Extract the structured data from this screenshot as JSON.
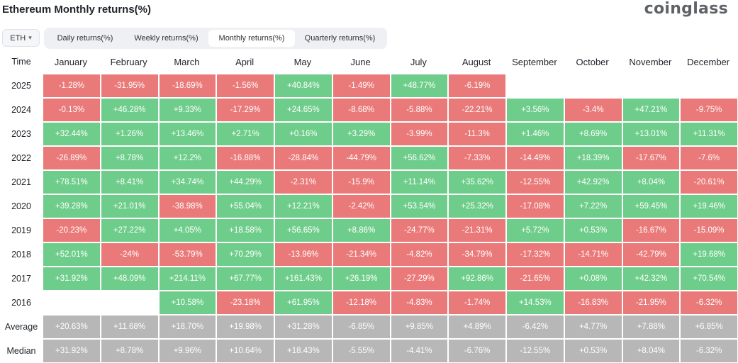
{
  "title": "Ethereum Monthly returns(%)",
  "brand": "coinglass",
  "asset_select": {
    "value": "ETH",
    "icon": "chevron-down-icon"
  },
  "tabs": [
    {
      "label": "Daily returns(%)",
      "active": false
    },
    {
      "label": "Weekly returns(%)",
      "active": false
    },
    {
      "label": "Monthly returns(%)",
      "active": true
    },
    {
      "label": "Quarterly returns(%)",
      "active": false
    }
  ],
  "colors": {
    "positive": "#6fcd8b",
    "negative": "#ea7a79",
    "stat": "#b7b7b7"
  },
  "table": {
    "corner": "Time",
    "months": [
      "January",
      "February",
      "March",
      "April",
      "May",
      "June",
      "July",
      "August",
      "September",
      "October",
      "November",
      "December"
    ],
    "rows": [
      {
        "label": "2025",
        "values": [
          "-1.28%",
          "-31.95%",
          "-18.69%",
          "-1.56%",
          "+40.84%",
          "-1.49%",
          "+48.77%",
          "-6.19%",
          "",
          "",
          "",
          ""
        ]
      },
      {
        "label": "2024",
        "values": [
          "-0.13%",
          "+46.28%",
          "+9.33%",
          "-17.29%",
          "+24.65%",
          "-8.68%",
          "-5.88%",
          "-22.21%",
          "+3.56%",
          "-3.4%",
          "+47.21%",
          "-9.75%"
        ]
      },
      {
        "label": "2023",
        "values": [
          "+32.44%",
          "+1.26%",
          "+13.46%",
          "+2.71%",
          "+0.16%",
          "+3.29%",
          "-3.99%",
          "-11.3%",
          "+1.46%",
          "+8.69%",
          "+13.01%",
          "+11.31%"
        ]
      },
      {
        "label": "2022",
        "values": [
          "-26.89%",
          "+8.78%",
          "+12.2%",
          "-16.88%",
          "-28.84%",
          "-44.79%",
          "+56.62%",
          "-7.33%",
          "-14.49%",
          "+18.39%",
          "-17.67%",
          "-7.6%"
        ]
      },
      {
        "label": "2021",
        "values": [
          "+78.51%",
          "+8.41%",
          "+34.74%",
          "+44.29%",
          "-2.31%",
          "-15.9%",
          "+11.14%",
          "+35.62%",
          "-12.55%",
          "+42.92%",
          "+8.04%",
          "-20.61%"
        ]
      },
      {
        "label": "2020",
        "values": [
          "+39.28%",
          "+21.01%",
          "-38.98%",
          "+55.04%",
          "+12.21%",
          "-2.42%",
          "+53.54%",
          "+25.32%",
          "-17.08%",
          "+7.22%",
          "+59.45%",
          "+19.46%"
        ]
      },
      {
        "label": "2019",
        "values": [
          "-20.23%",
          "+27.22%",
          "+4.05%",
          "+18.58%",
          "+56.65%",
          "+8.86%",
          "-24.77%",
          "-21.31%",
          "+5.72%",
          "+0.53%",
          "-16.67%",
          "-15.09%"
        ]
      },
      {
        "label": "2018",
        "values": [
          "+52.01%",
          "-24%",
          "-53.79%",
          "+70.29%",
          "-13.96%",
          "-21.34%",
          "-4.82%",
          "-34.79%",
          "-17.32%",
          "-14.71%",
          "-42.79%",
          "+19.68%"
        ]
      },
      {
        "label": "2017",
        "values": [
          "+31.92%",
          "+48.09%",
          "+214.11%",
          "+67.77%",
          "+161.43%",
          "+26.19%",
          "-27.29%",
          "+92.86%",
          "-21.65%",
          "+0.08%",
          "+42.32%",
          "+70.54%"
        ]
      },
      {
        "label": "2016",
        "values": [
          "",
          "",
          "+10.58%",
          "-23.18%",
          "+61.95%",
          "-12.18%",
          "-4.83%",
          "-1.74%",
          "+14.53%",
          "-16.83%",
          "-21.95%",
          "-6.32%"
        ]
      }
    ],
    "summary": [
      {
        "label": "Average",
        "values": [
          "+20.63%",
          "+11.68%",
          "+18.70%",
          "+19.98%",
          "+31.28%",
          "-6.85%",
          "+9.85%",
          "+4.89%",
          "-6.42%",
          "+4.77%",
          "+7.88%",
          "+6.85%"
        ]
      },
      {
        "label": "Median",
        "values": [
          "+31.92%",
          "+8.78%",
          "+9.96%",
          "+10.64%",
          "+18.43%",
          "-5.55%",
          "-4.41%",
          "-6.76%",
          "-12.55%",
          "+0.53%",
          "+8.04%",
          "-6.32%"
        ]
      }
    ]
  }
}
